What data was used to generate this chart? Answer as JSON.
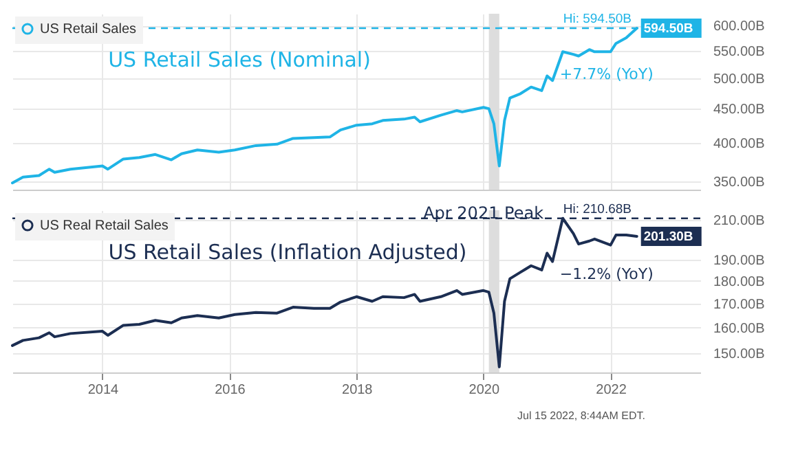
{
  "chart_data": [
    {
      "type": "line",
      "legend": "top left",
      "grid": true,
      "log": "y",
      "tick_labels": "y",
      "x": [
        "2012-08",
        "2012-10",
        "2013-01",
        "2013-03",
        "2013-04",
        "2013-07",
        "2014-01",
        "2014-02",
        "2014-05",
        "2014-08",
        "2014-11",
        "2015-02",
        "2015-04",
        "2015-07",
        "2015-11",
        "2016-02",
        "2016-06",
        "2016-10",
        "2017-01",
        "2017-05",
        "2017-08",
        "2017-10",
        "2018-01",
        "2018-04",
        "2018-06",
        "2018-10",
        "2018-12",
        "2019-01",
        "2019-05",
        "2019-08",
        "2019-09",
        "2020-01",
        "2020-02",
        "2020-03",
        "2020-04",
        "2020-05",
        "2020-06",
        "2020-08",
        "2020-10",
        "2020-12",
        "2021-01",
        "2021-02",
        "2021-04",
        "2021-06",
        "2021-07",
        "2021-09",
        "2021-10",
        "2022-01",
        "2022-02",
        "2022-04",
        "2022-06"
      ],
      "series": [
        {
          "name": "US Retail Sales",
          "color": "#1fb4e6",
          "values": [
            348,
            355,
            357,
            365,
            361,
            365,
            369,
            365,
            378,
            380,
            384,
            377,
            385,
            390,
            387,
            390,
            396,
            398,
            406,
            407,
            408,
            418,
            425,
            427,
            432,
            434,
            437,
            430,
            440,
            447,
            445,
            452,
            450,
            427,
            369,
            432,
            467,
            474,
            485,
            479,
            504,
            496,
            548,
            543,
            540,
            552,
            548,
            548,
            564,
            575,
            594.5
          ],
          "value_labels": [
            null,
            null,
            null,
            null,
            null,
            null,
            null,
            null,
            null,
            null,
            null,
            null,
            null,
            null,
            null,
            null,
            null,
            null,
            null,
            null,
            null,
            null,
            null,
            null,
            null,
            null,
            null,
            null,
            null,
            null,
            null,
            null,
            null,
            null,
            null,
            null,
            null,
            null,
            null,
            null,
            null,
            null,
            null,
            null,
            null,
            null,
            null,
            null,
            null,
            null,
            "594.50B"
          ]
        }
      ],
      "xlim": [
        "2012-08",
        "2023-06"
      ],
      "xticks": [
        "2014",
        "2016",
        "2018",
        "2020",
        "2022"
      ],
      "ylim": [
        340,
        625
      ],
      "yticks": [
        {
          "value": 350,
          "label": "350.00B"
        },
        {
          "value": 400,
          "label": "400.00B"
        },
        {
          "value": 450,
          "label": "450.00B"
        },
        {
          "value": 500,
          "label": "500.00B"
        },
        {
          "value": 550,
          "label": "550.00B"
        },
        {
          "value": 600,
          "label": "600.00B"
        }
      ],
      "bands": [
        {
          "axis": "x",
          "from": "2020-02",
          "to": "2020-04",
          "color": "#dddddd"
        }
      ],
      "ref_lines": [
        {
          "axis": "y",
          "value": 594.5,
          "label": "Hi: 594.50B",
          "color": "#1fb4e6",
          "line_style": "dashed"
        }
      ],
      "annotations": [
        "US Retail Sales (Nominal)",
        {
          "text": "+7.7% (YoY)",
          "x": "2022-06",
          "y": 594.5
        }
      ]
    },
    {
      "type": "line",
      "legend": "top left",
      "grid": true,
      "log": "y",
      "x": [
        "2012-08",
        "2012-10",
        "2013-01",
        "2013-03",
        "2013-04",
        "2013-07",
        "2014-01",
        "2014-02",
        "2014-05",
        "2014-08",
        "2014-11",
        "2015-02",
        "2015-04",
        "2015-07",
        "2015-11",
        "2016-02",
        "2016-06",
        "2016-10",
        "2017-01",
        "2017-05",
        "2017-08",
        "2017-10",
        "2018-01",
        "2018-04",
        "2018-06",
        "2018-10",
        "2018-12",
        "2019-01",
        "2019-05",
        "2019-08",
        "2019-09",
        "2020-01",
        "2020-02",
        "2020-03",
        "2020-04",
        "2020-05",
        "2020-06",
        "2020-08",
        "2020-10",
        "2020-12",
        "2021-01",
        "2021-02",
        "2021-04",
        "2021-06",
        "2021-07",
        "2021-09",
        "2021-10",
        "2022-01",
        "2022-02",
        "2022-04",
        "2022-06"
      ],
      "series": [
        {
          "name": "US Real Retail Sales",
          "color": "#1c2e52",
          "values": [
            153,
            155,
            156,
            158,
            156.4,
            157.7,
            158.6,
            157,
            161,
            161.4,
            163,
            162,
            164,
            165,
            164,
            165.4,
            166.3,
            166,
            168.5,
            168,
            168,
            170.7,
            173,
            171,
            173,
            172.6,
            174,
            171,
            173,
            175.7,
            174,
            175.7,
            175,
            166,
            145,
            171,
            181,
            184,
            187,
            185,
            193,
            189,
            210.68,
            202.8,
            197.5,
            199,
            200,
            197,
            202,
            202,
            201.3
          ],
          "value_labels": [
            null,
            null,
            null,
            null,
            null,
            null,
            null,
            null,
            null,
            null,
            null,
            null,
            null,
            null,
            null,
            null,
            null,
            null,
            null,
            null,
            null,
            null,
            null,
            null,
            null,
            null,
            null,
            null,
            null,
            null,
            null,
            null,
            null,
            null,
            null,
            null,
            null,
            null,
            null,
            null,
            null,
            null,
            null,
            null,
            null,
            null,
            null,
            null,
            null,
            null,
            "201.30B"
          ]
        }
      ],
      "xlim": [
        "2012-08",
        "2023-06"
      ],
      "xticks": [
        "2014",
        "2016",
        "2018",
        "2020",
        "2022"
      ],
      "ylim": [
        143,
        215
      ],
      "yticks": [
        {
          "value": 150,
          "label": "150.00B"
        },
        {
          "value": 160,
          "label": "160.00B"
        },
        {
          "value": 170,
          "label": "170.00B"
        },
        {
          "value": 180,
          "label": "180.00B"
        },
        {
          "value": 190,
          "label": "190.00B"
        },
        {
          "value": 210,
          "label": "210.00B"
        }
      ],
      "bands": [
        {
          "axis": "x",
          "from": "2020-02",
          "to": "2020-04",
          "color": "#dddddd"
        }
      ],
      "ref_lines": [
        {
          "axis": "y",
          "value": 210.68,
          "label": "Hi: 210.68B",
          "color": "#1c2e52",
          "line_style": "dashed"
        }
      ],
      "annotations": [
        "US Retail Sales (Inflation Adjusted)",
        {
          "text": "Apr 2021 Peak",
          "x": "2021-04",
          "y": 210.68
        },
        {
          "text": "−1.2% (YoY)",
          "x": "2022-06",
          "y": 201.3
        },
        "Jul 15 2022, 8:44AM EDT."
      ]
    }
  ]
}
